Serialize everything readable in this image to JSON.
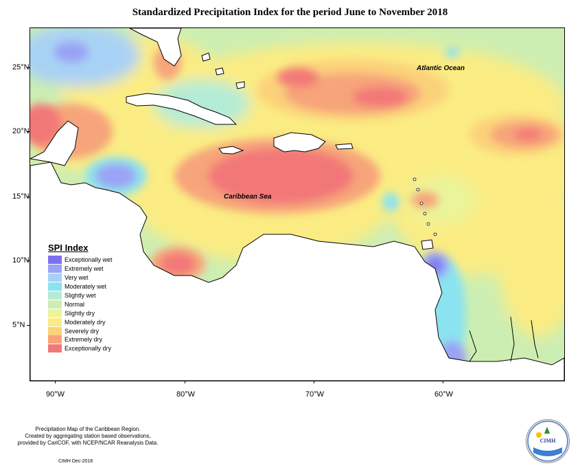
{
  "title": "Standardized Precipitation Index for the period June to November 2018",
  "map": {
    "labels": {
      "atlantic": "Atlantic Ocean",
      "caribbean": "Caribbean Sea"
    },
    "lat_ticks": [
      "25°N",
      "20°N",
      "15°N",
      "10°N",
      "5°N"
    ],
    "lon_ticks": [
      "90°W",
      "80°W",
      "70°W",
      "60°W"
    ]
  },
  "legend": {
    "title": "SPI Index",
    "items": [
      {
        "label": "Exceptionally wet",
        "color": "#7b6ff0"
      },
      {
        "label": "Extremely wet",
        "color": "#9aa3f5"
      },
      {
        "label": "Very wet",
        "color": "#a8d2f5"
      },
      {
        "label": "Moderately wet",
        "color": "#8be3ef"
      },
      {
        "label": "Slightly wet",
        "color": "#b4ecd6"
      },
      {
        "label": "Normal",
        "color": "#cdeeb2"
      },
      {
        "label": "Slightly dry",
        "color": "#eaf49a"
      },
      {
        "label": "Moderately dry",
        "color": "#fbec83"
      },
      {
        "label": "Severely dry",
        "color": "#fbd27a"
      },
      {
        "label": "Extremely dry",
        "color": "#f7a47a"
      },
      {
        "label": "Exceptionally dry",
        "color": "#f27878"
      }
    ]
  },
  "footer": {
    "line1": "Precipitation Map of the Caribbean Region.",
    "line2": "Created by aggregating station based observations,",
    "line3": "provided by CariCOF, with NCEP/NCAR Reanalysis Data.",
    "credit": "CIMH Dec-2018"
  },
  "logo": {
    "text": "CIMH"
  }
}
